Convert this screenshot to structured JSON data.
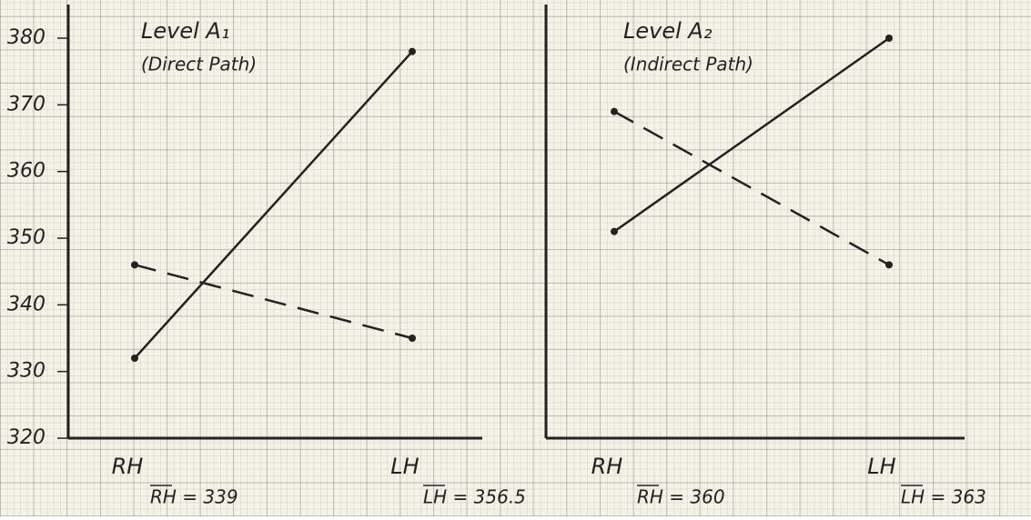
{
  "chart_data": [
    {
      "type": "line",
      "title": "Level A₁",
      "subtitle": "(Direct Path)",
      "categories": [
        "RH",
        "LH"
      ],
      "series": [
        {
          "color": "#222222",
          "dash": false,
          "values": [
            332,
            378
          ]
        },
        {
          "color": "#222222",
          "dash": true,
          "values": [
            346,
            335
          ]
        }
      ],
      "ylim": [
        320,
        380
      ],
      "yticks": [
        320,
        330,
        340,
        350,
        360,
        370,
        380
      ],
      "annotations": [
        "RH = 339",
        "LH = 356.5"
      ]
    },
    {
      "type": "line",
      "title": "Level A₂",
      "subtitle": "(Indirect Path)",
      "categories": [
        "RH",
        "LH"
      ],
      "series": [
        {
          "color": "#222222",
          "dash": false,
          "values": [
            351,
            380
          ]
        },
        {
          "color": "#222222",
          "dash": true,
          "values": [
            369,
            346
          ]
        }
      ],
      "ylim": [
        320,
        380
      ],
      "annotations": [
        "RH = 360",
        "LH = 363"
      ]
    }
  ]
}
